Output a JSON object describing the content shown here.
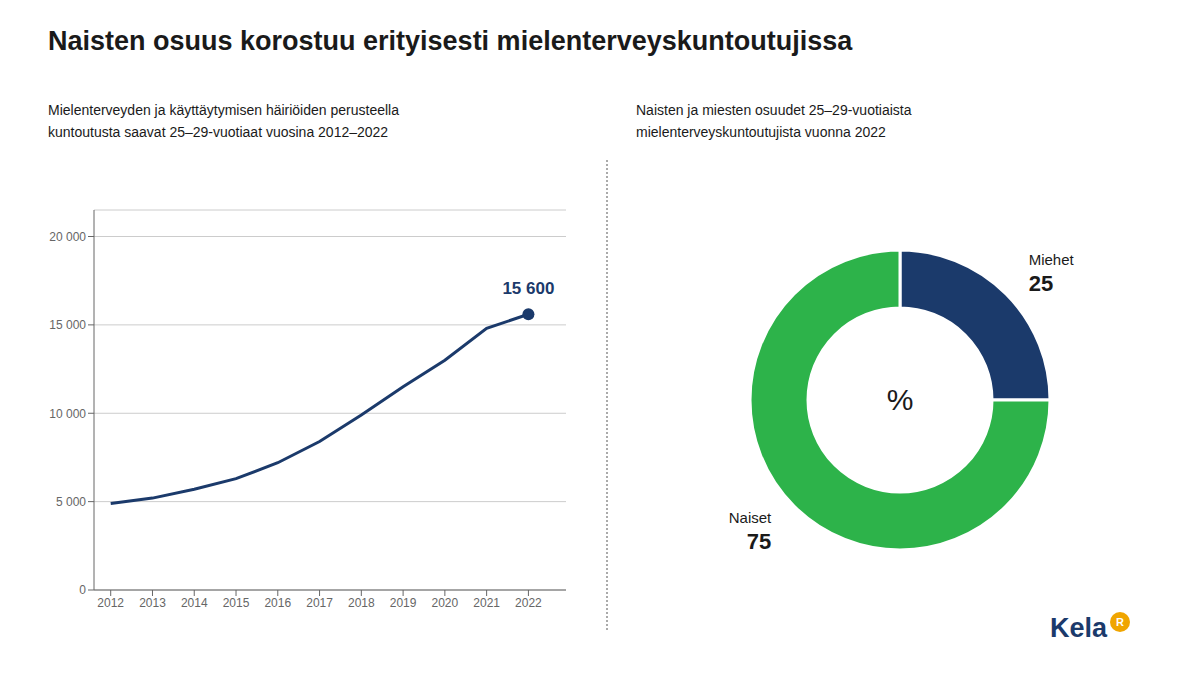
{
  "chart_data": [
    {
      "type": "line",
      "title": "Naisten osuus korostuu erityisesti mielenterveyskuntoutujissa",
      "subtitle": "Mielenterveyden ja käyttäytymisen häiriöiden perusteella\nkuntoutusta saavat 25–29-vuotiaat vuosina 2012–2022",
      "x": [
        2012,
        2013,
        2014,
        2015,
        2016,
        2017,
        2018,
        2019,
        2020,
        2021,
        2022
      ],
      "values": [
        4900,
        5200,
        5700,
        6300,
        7200,
        8400,
        9900,
        11500,
        13000,
        14800,
        15600
      ],
      "color": "#1b3a6b",
      "xlim": [
        2011.6,
        2022.9
      ],
      "xticks": [
        2012,
        2013,
        2014,
        2015,
        2016,
        2017,
        2018,
        2019,
        2020,
        2021,
        2022
      ],
      "ylim": [
        0,
        21500
      ],
      "yticks": [
        0,
        {
          "value": 5000,
          "label": "5 000"
        },
        {
          "value": 10000,
          "label": "10 000"
        },
        {
          "value": 15000,
          "label": "15 000"
        },
        {
          "value": 20000,
          "label": "20 000"
        }
      ],
      "grid": "y",
      "annotations": [
        {
          "x": 2022,
          "y": 15600,
          "text": "15 600"
        }
      ]
    },
    {
      "type": "pie",
      "subtitle": "Naisten ja miesten osuudet 25–29-vuotiaista\nmielenterveyskuntoutujista vuonna 2022",
      "categories": [
        "Miehet",
        "Naiset"
      ],
      "values": [
        25,
        75
      ],
      "colors": [
        "#1b3a6b",
        "#2db34a"
      ],
      "data_labels": true,
      "annotations": [
        {
          "text": "%"
        },
        {
          "text": "Kela",
          "color": "#1b3a6b"
        },
        {
          "text": "R",
          "color": "#f0a500"
        }
      ]
    }
  ]
}
